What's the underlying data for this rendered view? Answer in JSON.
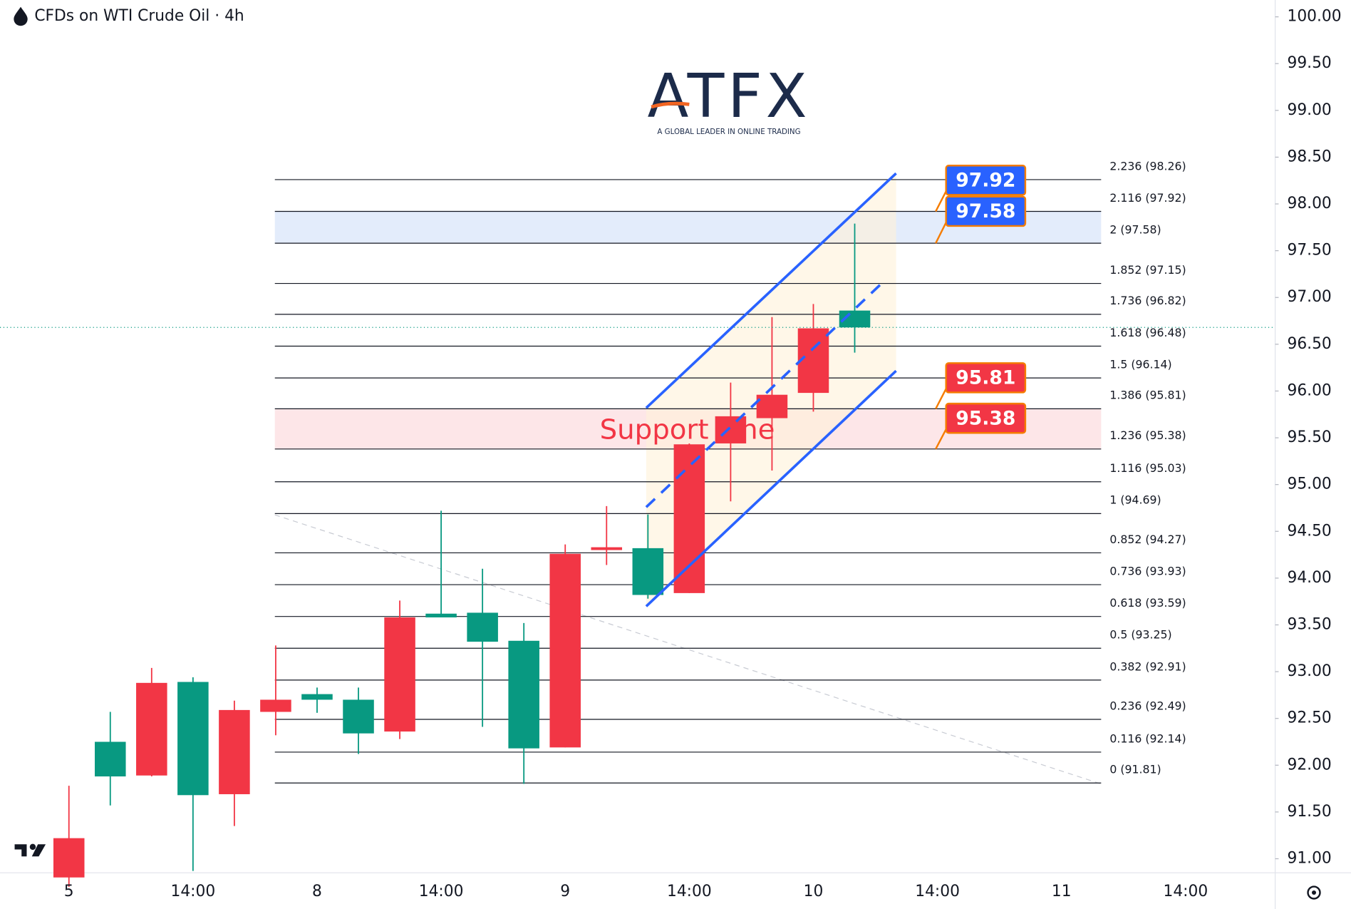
{
  "chart_data": {
    "type": "candlestick",
    "title": "CFDs on WTI Crude Oil · 4h",
    "logo": {
      "name": "ATFX",
      "tagline": "A GLOBAL LEADER IN ONLINE TRADING"
    },
    "annotation": "Support Line",
    "categories": [
      "5",
      null,
      null,
      "14:00",
      null,
      null,
      "8",
      null,
      null,
      "14:00",
      null,
      null,
      "9",
      null,
      null,
      "14:00",
      null,
      null,
      "10",
      null,
      null,
      "14:00",
      null,
      null,
      "11",
      null,
      null,
      "14:00"
    ],
    "open": [
      90.8,
      92.25,
      91.89,
      92.89,
      91.69,
      92.57,
      92.76,
      92.7,
      92.36,
      93.62,
      93.63,
      93.33,
      92.19,
      94.3,
      94.32,
      93.84,
      95.44,
      95.71,
      95.98,
      96.86,
      null,
      null,
      null,
      null,
      null,
      null,
      null,
      null
    ],
    "high": [
      91.78,
      92.57,
      93.04,
      92.94,
      92.69,
      93.28,
      92.83,
      92.83,
      93.76,
      94.72,
      94.1,
      93.52,
      94.36,
      94.77,
      94.68,
      95.44,
      96.09,
      96.79,
      96.93,
      97.79,
      null,
      null,
      null,
      null,
      null,
      null,
      null,
      null
    ],
    "low": [
      90.7,
      91.57,
      91.88,
      90.87,
      91.35,
      92.32,
      92.56,
      92.12,
      92.28,
      93.58,
      92.41,
      91.8,
      92.19,
      94.14,
      93.78,
      93.84,
      94.82,
      95.15,
      95.78,
      96.41,
      null,
      null,
      null,
      null,
      null,
      null,
      null,
      null
    ],
    "close": [
      91.22,
      91.88,
      92.88,
      91.68,
      92.59,
      92.7,
      92.7,
      92.34,
      93.58,
      93.58,
      93.32,
      92.18,
      94.26,
      94.33,
      93.82,
      95.43,
      95.73,
      95.96,
      96.67,
      96.68,
      null,
      null,
      null,
      null,
      null,
      null,
      null,
      null
    ],
    "up_color": "#f23645",
    "down_color": "#089981",
    "ylim": [
      90.85,
      100.18
    ],
    "yticks": [
      {
        "value": 91,
        "label": "91.00"
      },
      {
        "value": 91.5,
        "label": "91.50"
      },
      {
        "value": 92,
        "label": "92.00"
      },
      {
        "value": 92.5,
        "label": "92.50"
      },
      {
        "value": 93,
        "label": "93.00"
      },
      {
        "value": 93.5,
        "label": "93.50"
      },
      {
        "value": 94,
        "label": "94.00"
      },
      {
        "value": 94.5,
        "label": "94.50"
      },
      {
        "value": 95,
        "label": "95.00"
      },
      {
        "value": 95.5,
        "label": "95.50"
      },
      {
        "value": 96,
        "label": "96.00"
      },
      {
        "value": 96.5,
        "label": "96.50"
      },
      {
        "value": 97,
        "label": "97.00"
      },
      {
        "value": 97.5,
        "label": "97.50"
      },
      {
        "value": 98,
        "label": "98.00"
      },
      {
        "value": 98.5,
        "label": "98.50"
      },
      {
        "value": 99,
        "label": "99.00"
      },
      {
        "value": 99.5,
        "label": "99.50"
      },
      {
        "value": 100,
        "label": "100.00"
      }
    ],
    "fib_levels": [
      {
        "value": 98.26,
        "label": "2.236 (98.26)"
      },
      {
        "value": 97.92,
        "label": "2.116 (97.92)"
      },
      {
        "value": 97.58,
        "label": "2 (97.58)"
      },
      {
        "value": 97.15,
        "label": "1.852 (97.15)"
      },
      {
        "value": 96.82,
        "label": "1.736 (96.82)"
      },
      {
        "value": 96.48,
        "label": "1.618 (96.48)"
      },
      {
        "value": 96.14,
        "label": "1.5 (96.14)"
      },
      {
        "value": 95.81,
        "label": "1.386 (95.81)"
      },
      {
        "value": 95.38,
        "label": "1.236 (95.38)"
      },
      {
        "value": 95.03,
        "label": "1.116 (95.03)"
      },
      {
        "value": 94.69,
        "label": "1 (94.69)"
      },
      {
        "value": 94.27,
        "label": "0.852 (94.27)"
      },
      {
        "value": 93.93,
        "label": "0.736 (93.93)"
      },
      {
        "value": 93.59,
        "label": "0.618 (93.59)"
      },
      {
        "value": 93.25,
        "label": "0.5 (93.25)"
      },
      {
        "value": 92.91,
        "label": "0.382 (92.91)"
      },
      {
        "value": 92.49,
        "label": "0.236 (92.49)"
      },
      {
        "value": 92.14,
        "label": "0.116 (92.14)"
      },
      {
        "value": 91.81,
        "label": "0 (91.81)"
      }
    ],
    "zones": [
      {
        "high": 97.92,
        "low": 97.58,
        "fill": "#e3ecfb",
        "label_color": "#2962ff"
      },
      {
        "high": 95.81,
        "low": 95.38,
        "fill": "#fde6e8",
        "label_color": "#f23645"
      }
    ]
  }
}
